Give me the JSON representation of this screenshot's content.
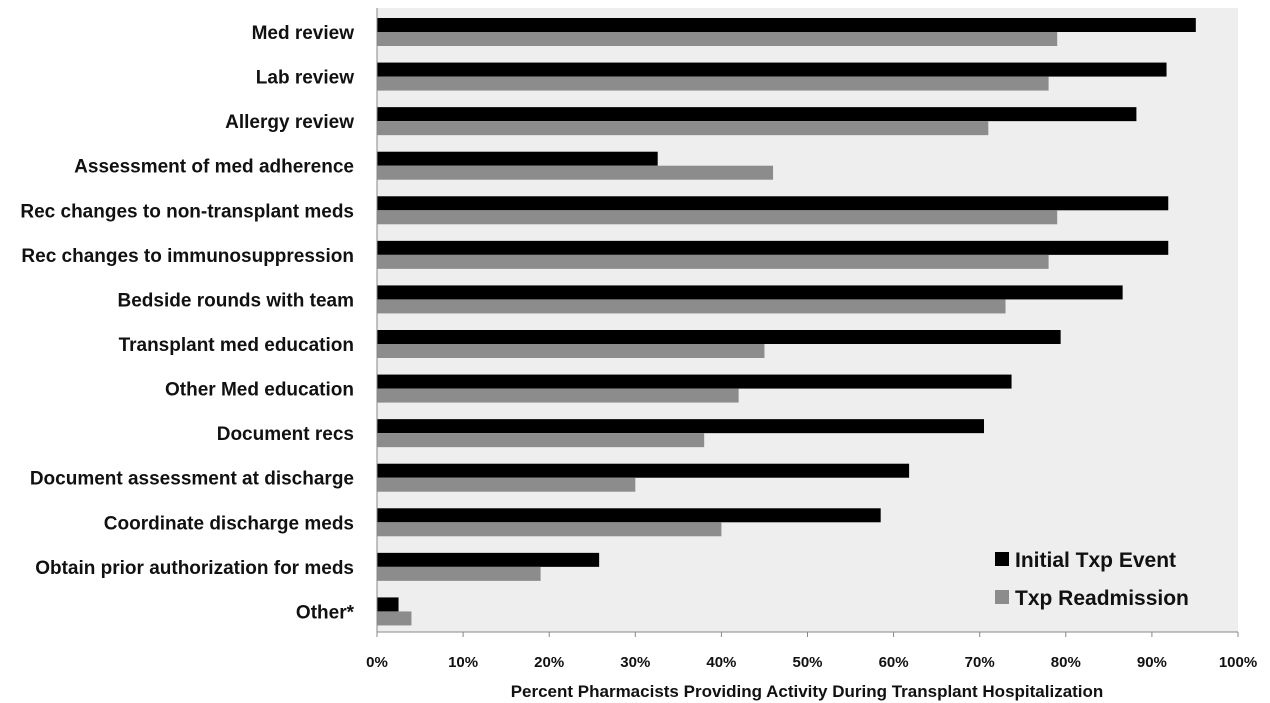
{
  "chart_data": {
    "type": "bar",
    "orientation": "horizontal",
    "categories": [
      "Med review",
      "Lab review",
      "Allergy review",
      "Assessment of med adherence",
      "Rec changes to non-transplant meds",
      "Rec changes to immunosuppression",
      "Bedside rounds with team",
      "Transplant med education",
      "Other Med education",
      "Document recs",
      "Document assessment at discharge",
      "Coordinate discharge meds",
      "Obtain prior authorization for meds",
      "Other*"
    ],
    "series": [
      {
        "name": "Initial Txp Event",
        "color": "#000000",
        "values": [
          95.1,
          91.7,
          88.2,
          32.6,
          91.9,
          91.9,
          86.6,
          79.4,
          73.7,
          70.5,
          61.8,
          58.5,
          25.8,
          2.5
        ]
      },
      {
        "name": "Txp Readmission",
        "color": "#8c8c8c",
        "values": [
          79,
          78,
          71,
          46,
          79,
          78,
          73,
          45,
          42,
          38,
          30,
          40,
          19,
          4
        ]
      }
    ],
    "xlim": [
      0,
      100
    ],
    "x_ticks": [
      "0%",
      "10%",
      "20%",
      "30%",
      "40%",
      "50%",
      "60%",
      "70%",
      "80%",
      "90%",
      "100%"
    ],
    "xlabel": "Percent Pharmacists Providing Activity During Transplant Hospitalization",
    "ylabel": "",
    "title": "",
    "grid": false,
    "legend_position": "bottom-right",
    "plot_background": "#eeeeee"
  }
}
